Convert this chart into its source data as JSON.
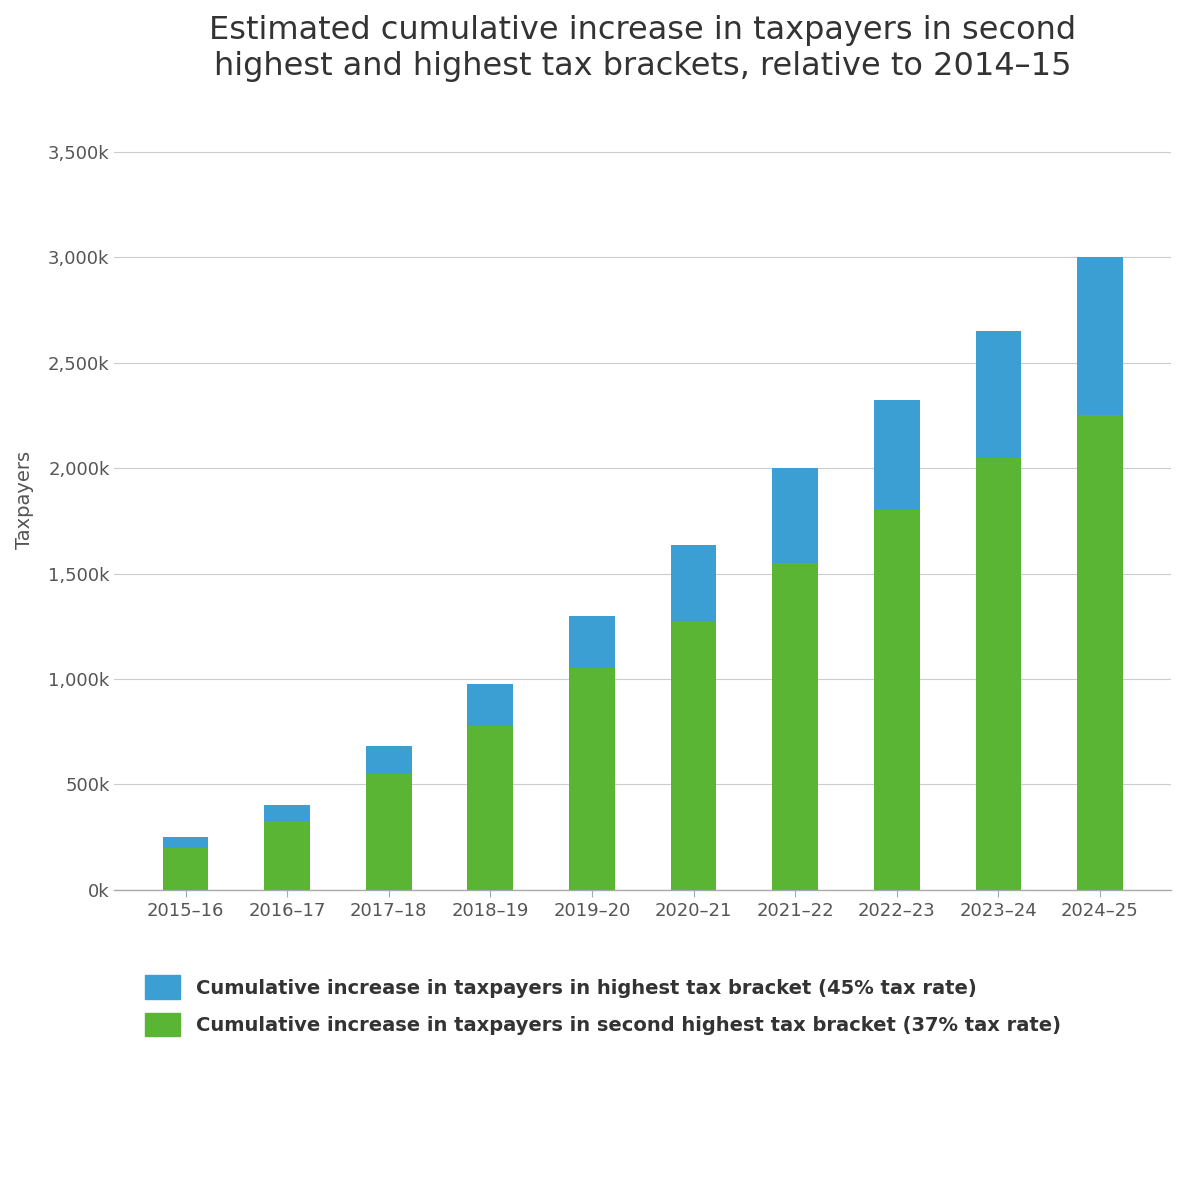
{
  "title": "Estimated cumulative increase in taxpayers in second\nhighest and highest tax brackets, relative to 2014–15",
  "ylabel": "Taxpayers",
  "categories": [
    "2015–16",
    "2016–17",
    "2017–18",
    "2018–19",
    "2019–20",
    "2020–21",
    "2021–22",
    "2022–23",
    "2023–24",
    "2024–25"
  ],
  "green_values": [
    200000,
    325000,
    550000,
    775000,
    1050000,
    1275000,
    1550000,
    1800000,
    2050000,
    2250000
  ],
  "blue_values": [
    50000,
    80000,
    130000,
    200000,
    250000,
    360000,
    450000,
    525000,
    600000,
    750000
  ],
  "blue_color": "#3c9fd4",
  "green_color": "#5ab534",
  "background_color": "#ffffff",
  "grid_color": "#cccccc",
  "ytick_labels": [
    "0k",
    "500k",
    "1,000k",
    "1,500k",
    "2,000k",
    "2,500k",
    "3,000k",
    "3,500k"
  ],
  "ytick_values": [
    0,
    500000,
    1000000,
    1500000,
    2000000,
    2500000,
    3000000,
    3500000
  ],
  "ylim": [
    0,
    3700000
  ],
  "legend_blue": "Cumulative increase in taxpayers in highest tax bracket (45% tax rate)",
  "legend_green": "Cumulative increase in taxpayers in second highest tax bracket (37% tax rate)",
  "title_fontsize": 23,
  "axis_label_fontsize": 14,
  "tick_fontsize": 13,
  "legend_fontsize": 14,
  "bar_width": 0.45
}
